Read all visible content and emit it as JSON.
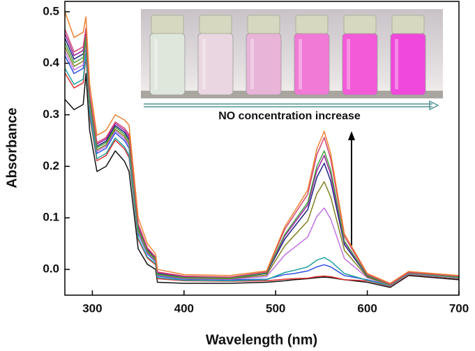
{
  "chart_data": {
    "type": "line",
    "x_label": "Wavelength (nm)",
    "y_label": "Absorbance",
    "annotation": "NO concentration increase",
    "xlim": [
      270,
      700
    ],
    "ylim": [
      -0.05,
      0.52
    ],
    "xticks": [
      300,
      400,
      500,
      600,
      700
    ],
    "yticks": [
      {
        "value": 0,
        "label": "0.0"
      },
      0.1,
      0.2,
      0.3,
      0.4,
      0.5
    ],
    "x": [
      270,
      280,
      290,
      293,
      297,
      305,
      315,
      325,
      335,
      340,
      350,
      360,
      369,
      371,
      400,
      450,
      490,
      510,
      520,
      535,
      545,
      553,
      560,
      575,
      600,
      625,
      645,
      700
    ],
    "series": [
      {
        "color": "#111111",
        "values": [
          0.33,
          0.31,
          0.32,
          0.38,
          0.27,
          0.19,
          0.2,
          0.23,
          0.21,
          0.19,
          0.04,
          0.01,
          0,
          -0.025,
          -0.027,
          -0.027,
          -0.025,
          -0.022,
          -0.02,
          -0.018,
          -0.016,
          -0.015,
          -0.016,
          -0.02,
          -0.025,
          -0.035,
          -0.012,
          -0.02
        ]
      },
      {
        "color": "#e03030",
        "values": [
          0.381,
          0.352,
          0.362,
          0.413,
          0.297,
          0.211,
          0.221,
          0.251,
          0.234,
          0.217,
          0.058,
          0.022,
          0.009,
          -0.018,
          -0.022,
          -0.023,
          -0.022,
          -0.019,
          -0.018,
          -0.017,
          -0.014,
          -0.013,
          -0.014,
          -0.02,
          -0.022,
          -0.033,
          -0.01,
          -0.018
        ]
      },
      {
        "color": "#3050e0",
        "values": [
          0.415,
          0.38,
          0.39,
          0.435,
          0.315,
          0.225,
          0.235,
          0.265,
          0.25,
          0.235,
          0.07,
          0.03,
          0.015,
          -0.013,
          -0.019,
          -0.02,
          -0.019,
          -0.01,
          -0.008,
          -0.003,
          0.005,
          0.009,
          0.005,
          -0.012,
          -0.02,
          -0.031,
          -0.008,
          -0.016
        ]
      },
      {
        "color": "#20a0a0",
        "values": [
          0.39,
          0.359,
          0.369,
          0.419,
          0.302,
          0.215,
          0.225,
          0.255,
          0.238,
          0.222,
          0.061,
          0.024,
          0.011,
          -0.016,
          -0.021,
          -0.022,
          -0.02,
          -0.006,
          -0.002,
          0.005,
          0.018,
          0.023,
          0.016,
          -0.008,
          -0.021,
          -0.032,
          -0.009,
          -0.017
        ]
      },
      {
        "color": "#c070e0",
        "values": [
          0.424,
          0.387,
          0.397,
          0.44,
          0.32,
          0.229,
          0.239,
          0.269,
          0.254,
          0.24,
          0.073,
          0.032,
          0.017,
          -0.011,
          -0.018,
          -0.019,
          -0.014,
          0.028,
          0.042,
          0.063,
          0.103,
          0.119,
          0.098,
          0.021,
          -0.016,
          -0.031,
          -0.008,
          -0.016
        ]
      },
      {
        "color": "#808020",
        "values": [
          0.432,
          0.394,
          0.404,
          0.446,
          0.324,
          0.232,
          0.242,
          0.272,
          0.258,
          0.244,
          0.076,
          0.034,
          0.018,
          -0.01,
          -0.017,
          -0.018,
          -0.011,
          0.046,
          0.065,
          0.094,
          0.147,
          0.17,
          0.141,
          0.037,
          -0.015,
          -0.03,
          -0.007,
          -0.015
        ]
      },
      {
        "color": "#202080",
        "values": [
          0.449,
          0.408,
          0.418,
          0.457,
          0.333,
          0.239,
          0.249,
          0.279,
          0.266,
          0.253,
          0.082,
          0.038,
          0.021,
          -0.008,
          -0.015,
          -0.017,
          -0.008,
          0.059,
          0.082,
          0.116,
          0.179,
          0.206,
          0.172,
          0.048,
          -0.013,
          -0.029,
          -0.006,
          -0.014
        ]
      },
      {
        "color": "#a020a0",
        "values": [
          0.458,
          0.415,
          0.425,
          0.463,
          0.338,
          0.243,
          0.253,
          0.283,
          0.27,
          0.258,
          0.085,
          0.04,
          0.023,
          -0.006,
          -0.014,
          -0.016,
          -0.007,
          0.065,
          0.089,
          0.125,
          0.192,
          0.221,
          0.185,
          0.053,
          -0.012,
          -0.029,
          -0.006,
          -0.014
        ]
      },
      {
        "color": "#40a040",
        "values": [
          0.44,
          0.401,
          0.411,
          0.452,
          0.329,
          0.236,
          0.246,
          0.276,
          0.262,
          0.249,
          0.079,
          0.036,
          0.02,
          -0.009,
          -0.016,
          -0.017,
          -0.007,
          0.068,
          0.093,
          0.13,
          0.2,
          0.23,
          0.193,
          0.055,
          -0.012,
          -0.03,
          -0.007,
          -0.015
        ]
      },
      {
        "color": "#d04070",
        "values": [
          0.466,
          0.422,
          0.432,
          0.468,
          0.342,
          0.246,
          0.256,
          0.286,
          0.274,
          0.262,
          0.088,
          0.042,
          0.024,
          -0.005,
          -0.013,
          -0.015,
          -0.005,
          0.078,
          0.105,
          0.146,
          0.223,
          0.256,
          0.215,
          0.064,
          -0.01,
          -0.029,
          -0.006,
          -0.013
        ]
      },
      {
        "color": "#f08030",
        "values": [
          0.5,
          0.45,
          0.46,
          0.49,
          0.36,
          0.26,
          0.27,
          0.3,
          0.29,
          0.28,
          0.1,
          0.05,
          0.03,
          0,
          -0.01,
          -0.012,
          -0.003,
          0.083,
          0.111,
          0.154,
          0.234,
          0.268,
          0.225,
          0.069,
          -0.008,
          -0.027,
          -0.004,
          -0.012
        ]
      }
    ]
  }
}
